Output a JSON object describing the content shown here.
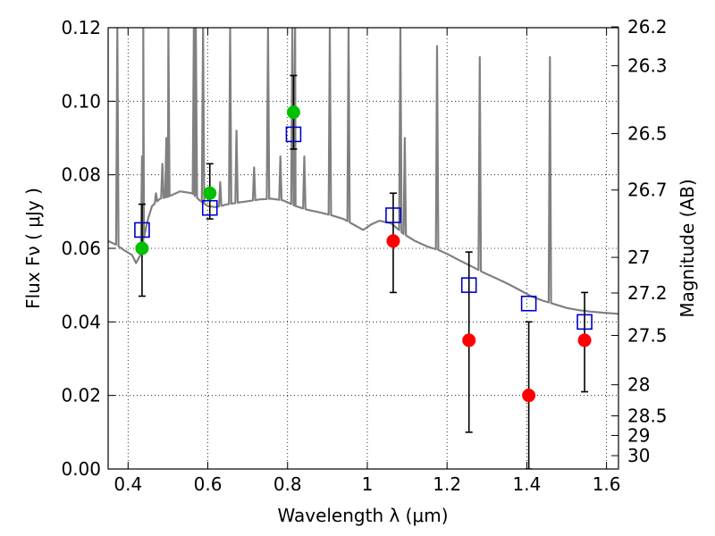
{
  "chart_data": {
    "type": "scatter",
    "xlabel": "Wavelength  λ (μm)",
    "ylabel": "Flux  Fν  ( μJy )",
    "y2label": "Magnitude (AB)",
    "xlim": [
      0.35,
      1.63
    ],
    "ylim": [
      0,
      0.12
    ],
    "grid": true,
    "x_ticks": [
      {
        "value": 0.4,
        "label": "0.4"
      },
      {
        "value": 0.6,
        "label": "0.6"
      },
      {
        "value": 0.8,
        "label": "0.8"
      },
      {
        "value": 1.0,
        "label": "1"
      },
      {
        "value": 1.2,
        "label": "1.2"
      },
      {
        "value": 1.4,
        "label": "1.4"
      },
      {
        "value": 1.6,
        "label": "1.6"
      }
    ],
    "y_ticks": [
      {
        "value": 0.0,
        "label": "0.00"
      },
      {
        "value": 0.02,
        "label": "0.02"
      },
      {
        "value": 0.04,
        "label": "0.04"
      },
      {
        "value": 0.06,
        "label": "0.06"
      },
      {
        "value": 0.08,
        "label": "0.08"
      },
      {
        "value": 0.1,
        "label": "0.10"
      },
      {
        "value": 0.12,
        "label": "0.12"
      }
    ],
    "y2_ticks": [
      {
        "value": 26.2,
        "label": "26.2"
      },
      {
        "value": 26.3,
        "label": "26.3"
      },
      {
        "value": 26.5,
        "label": "26.5"
      },
      {
        "value": 26.7,
        "label": "26.7"
      },
      {
        "value": 27.0,
        "label": "27"
      },
      {
        "value": 27.2,
        "label": "27.2"
      },
      {
        "value": 27.5,
        "label": "27.5"
      },
      {
        "value": 28.0,
        "label": "28"
      },
      {
        "value": 28.5,
        "label": "28.5"
      },
      {
        "value": 29.0,
        "label": "29"
      },
      {
        "value": 30.0,
        "label": "30"
      }
    ],
    "colors": {
      "model": "#808080",
      "green": "#00c000",
      "red": "#ff0000",
      "square": "#0000cc",
      "errorbar": "#000000"
    },
    "model_spectrum": {
      "continuum": [
        [
          0.35,
          0.062
        ],
        [
          0.37,
          0.061
        ],
        [
          0.39,
          0.0595
        ],
        [
          0.41,
          0.0582
        ],
        [
          0.42,
          0.056
        ],
        [
          0.43,
          0.058
        ],
        [
          0.44,
          0.063
        ],
        [
          0.45,
          0.068
        ],
        [
          0.46,
          0.0715
        ],
        [
          0.48,
          0.0735
        ],
        [
          0.5,
          0.074
        ],
        [
          0.53,
          0.0755
        ],
        [
          0.56,
          0.075
        ],
        [
          0.58,
          0.073
        ],
        [
          0.6,
          0.0715
        ],
        [
          0.62,
          0.0712
        ],
        [
          0.65,
          0.072
        ],
        [
          0.68,
          0.0725
        ],
        [
          0.7,
          0.0728
        ],
        [
          0.73,
          0.0733
        ],
        [
          0.76,
          0.0735
        ],
        [
          0.79,
          0.073
        ],
        [
          0.82,
          0.0715
        ],
        [
          0.85,
          0.0705
        ],
        [
          0.88,
          0.0698
        ],
        [
          0.91,
          0.069
        ],
        [
          0.94,
          0.068
        ],
        [
          0.97,
          0.0662
        ],
        [
          0.99,
          0.065
        ],
        [
          1.01,
          0.0665
        ],
        [
          1.03,
          0.0675
        ],
        [
          1.06,
          0.0668
        ],
        [
          1.09,
          0.064
        ],
        [
          1.12,
          0.062
        ],
        [
          1.15,
          0.0605
        ],
        [
          1.18,
          0.0595
        ],
        [
          1.2,
          0.0585
        ],
        [
          1.23,
          0.0568
        ],
        [
          1.26,
          0.0552
        ],
        [
          1.29,
          0.0535
        ],
        [
          1.32,
          0.052
        ],
        [
          1.35,
          0.0505
        ],
        [
          1.38,
          0.0488
        ],
        [
          1.41,
          0.047
        ],
        [
          1.44,
          0.0458
        ],
        [
          1.47,
          0.0448
        ],
        [
          1.5,
          0.0438
        ],
        [
          1.53,
          0.0432
        ],
        [
          1.56,
          0.0428
        ],
        [
          1.59,
          0.0425
        ],
        [
          1.63,
          0.0422
        ]
      ],
      "emission_lines": [
        [
          0.373,
          0.12
        ],
        [
          0.435,
          0.085
        ],
        [
          0.438,
          0.12
        ],
        [
          0.47,
          0.075
        ],
        [
          0.486,
          0.083
        ],
        [
          0.496,
          0.09
        ],
        [
          0.501,
          0.12
        ],
        [
          0.565,
          0.12
        ],
        [
          0.57,
          0.12
        ],
        [
          0.588,
          0.12
        ],
        [
          0.631,
          0.078
        ],
        [
          0.656,
          0.12
        ],
        [
          0.672,
          0.092
        ],
        [
          0.716,
          0.082
        ],
        [
          0.751,
          0.12
        ],
        [
          0.782,
          0.085
        ],
        [
          0.812,
          0.12
        ],
        [
          0.819,
          0.12
        ],
        [
          0.842,
          0.085
        ],
        [
          0.906,
          0.12
        ],
        [
          0.953,
          0.12
        ],
        [
          1.083,
          0.12
        ],
        [
          1.094,
          0.09
        ],
        [
          1.175,
          0.115
        ],
        [
          1.282,
          0.112
        ],
        [
          1.458,
          0.112
        ]
      ]
    },
    "green_points": [
      {
        "x": 0.435,
        "y": 0.06
      },
      {
        "x": 0.605,
        "y": 0.075
      },
      {
        "x": 0.815,
        "y": 0.097
      }
    ],
    "red_points": [
      {
        "x": 1.065,
        "y": 0.062
      },
      {
        "x": 1.255,
        "y": 0.035
      },
      {
        "x": 1.405,
        "y": 0.02
      },
      {
        "x": 1.545,
        "y": 0.035
      }
    ],
    "error_bars": [
      {
        "x": 0.435,
        "low": 0.047,
        "high": 0.072
      },
      {
        "x": 0.605,
        "low": 0.068,
        "high": 0.083
      },
      {
        "x": 0.815,
        "low": 0.087,
        "high": 0.107
      },
      {
        "x": 1.065,
        "low": 0.048,
        "high": 0.075
      },
      {
        "x": 1.255,
        "low": 0.01,
        "high": 0.059
      },
      {
        "x": 1.405,
        "low": 0.0,
        "high": 0.04
      },
      {
        "x": 1.545,
        "low": 0.021,
        "high": 0.048
      }
    ],
    "model_squares": [
      {
        "x": 0.435,
        "y": 0.065
      },
      {
        "x": 0.605,
        "y": 0.071
      },
      {
        "x": 0.815,
        "y": 0.091
      },
      {
        "x": 1.065,
        "y": 0.069
      },
      {
        "x": 1.255,
        "y": 0.05
      },
      {
        "x": 1.405,
        "y": 0.045
      },
      {
        "x": 1.545,
        "y": 0.04
      }
    ]
  }
}
